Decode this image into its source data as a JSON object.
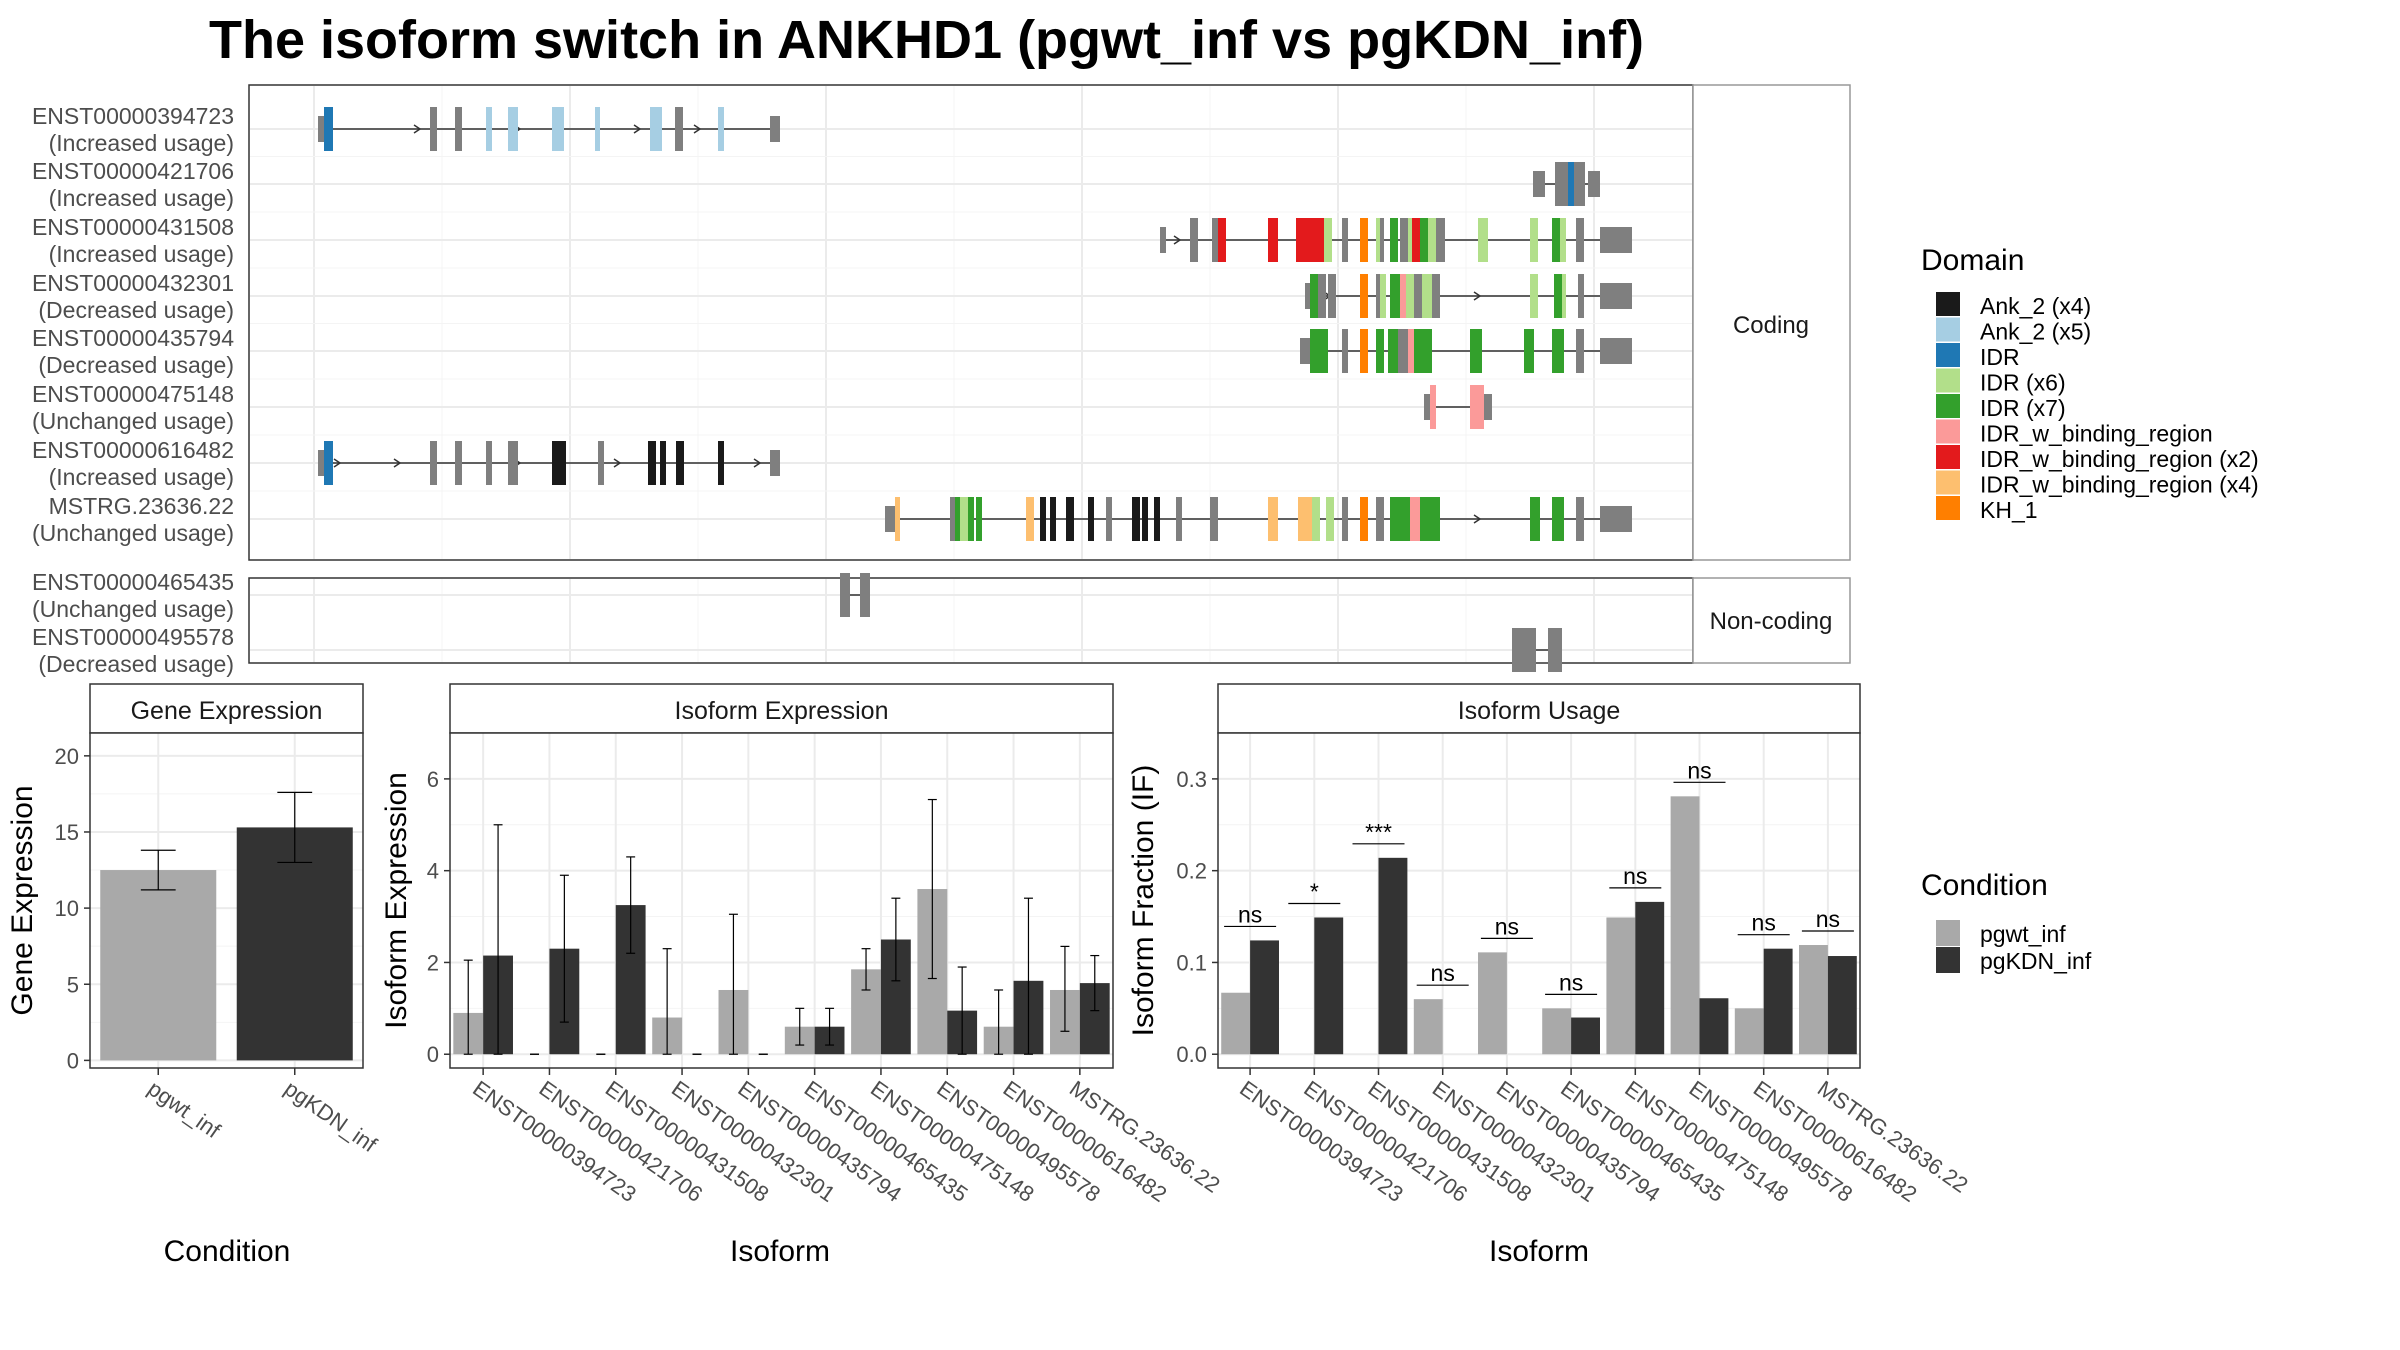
{
  "title": "The isoform switch in ANKHD1 (pgwt_inf vs pgKDN_inf)",
  "transcripts": {
    "coding_label": "Coding",
    "noncoding_label": "Non-coding",
    "coding": [
      {
        "id": "ENST00000394723",
        "usage": "(Increased usage)"
      },
      {
        "id": "ENST00000421706",
        "usage": "(Increased usage)"
      },
      {
        "id": "ENST00000431508",
        "usage": "(Increased usage)"
      },
      {
        "id": "ENST00000432301",
        "usage": "(Decreased usage)"
      },
      {
        "id": "ENST00000435794",
        "usage": "(Decreased usage)"
      },
      {
        "id": "ENST00000475148",
        "usage": "(Unchanged usage)"
      },
      {
        "id": "ENST00000616482",
        "usage": "(Increased usage)"
      },
      {
        "id": "MSTRG.23636.22",
        "usage": "(Unchanged usage)"
      }
    ],
    "noncoding": [
      {
        "id": "ENST00000465435",
        "usage": "(Unchanged usage)"
      },
      {
        "id": "ENST00000495578",
        "usage": "(Decreased usage)"
      }
    ]
  },
  "domain_legend": {
    "title": "Domain",
    "items": [
      {
        "label": "Ank_2 (x4)",
        "color": "#1a1a1a"
      },
      {
        "label": "Ank_2 (x5)",
        "color": "#a6cee3"
      },
      {
        "label": "IDR",
        "color": "#1f78b4"
      },
      {
        "label": "IDR (x6)",
        "color": "#b2df8a"
      },
      {
        "label": "IDR (x7)",
        "color": "#33a02c"
      },
      {
        "label": "IDR_w_binding_region",
        "color": "#fb9a99"
      },
      {
        "label": "IDR_w_binding_region (x2)",
        "color": "#e31a1c"
      },
      {
        "label": "IDR_w_binding_region (x4)",
        "color": "#fdbf6f"
      },
      {
        "label": "KH_1",
        "color": "#ff7f00"
      }
    ]
  },
  "condition_legend": {
    "title": "Condition",
    "items": [
      {
        "label": "pgwt_inf",
        "color": "#a9a9a9"
      },
      {
        "label": "pgKDN_inf",
        "color": "#333333"
      }
    ]
  },
  "chart_data": [
    {
      "type": "bar",
      "title": "Gene Expression",
      "xlabel": "Condition",
      "ylabel": "Gene Expression",
      "categories": [
        "pgwt_inf",
        "pgKDN_inf"
      ],
      "values": [
        12.5,
        15.3
      ],
      "error_low": [
        11.2,
        13.0
      ],
      "error_high": [
        13.8,
        17.6
      ],
      "ylim": [
        -0.5,
        21.5
      ],
      "yticks": [
        0,
        5,
        10,
        15,
        20
      ],
      "colors": [
        "#a9a9a9",
        "#333333"
      ]
    },
    {
      "type": "bar",
      "title": "Isoform Expression",
      "xlabel": "Isoform",
      "ylabel": "Isoform Expression",
      "categories": [
        "ENST00000394723",
        "ENST00000421706",
        "ENST00000431508",
        "ENST00000432301",
        "ENST00000435794",
        "ENST00000465435",
        "ENST00000475148",
        "ENST00000495578",
        "ENST00000616482",
        "MSTRG.23636.22"
      ],
      "series": [
        {
          "name": "pgwt_inf",
          "values": [
            0.9,
            0.0,
            0.0,
            0.8,
            1.4,
            0.6,
            1.85,
            3.6,
            0.6,
            1.4
          ],
          "err_low": [
            0.0,
            0.0,
            0.0,
            0.0,
            0.0,
            0.2,
            1.4,
            1.65,
            0.0,
            0.5
          ],
          "err_high": [
            2.05,
            0.0,
            0.0,
            2.3,
            3.05,
            1.0,
            2.3,
            5.55,
            1.4,
            2.35
          ]
        },
        {
          "name": "pgKDN_inf",
          "values": [
            2.15,
            2.3,
            3.25,
            0.0,
            0.0,
            0.6,
            2.5,
            0.95,
            1.6,
            1.55
          ],
          "err_low": [
            0.0,
            0.7,
            2.2,
            0.0,
            0.0,
            0.2,
            1.6,
            0.0,
            0.0,
            0.95
          ],
          "err_high": [
            5.0,
            3.9,
            4.3,
            0.0,
            0.0,
            1.0,
            3.4,
            1.9,
            3.4,
            2.15
          ]
        }
      ],
      "ylim": [
        -0.3,
        7.0
      ],
      "yticks": [
        0,
        2,
        4,
        6
      ]
    },
    {
      "type": "bar",
      "title": "Isoform Usage",
      "xlabel": "Isoform",
      "ylabel": "Isoform Fraction (IF)",
      "categories": [
        "ENST00000394723",
        "ENST00000421706",
        "ENST00000431508",
        "ENST00000432301",
        "ENST00000435794",
        "ENST00000465435",
        "ENST00000475148",
        "ENST00000495578",
        "ENST00000616482",
        "MSTRG.23636.22"
      ],
      "series": [
        {
          "name": "pgwt_inf",
          "values": [
            0.067,
            0.0,
            0.0,
            0.06,
            0.111,
            0.05,
            0.149,
            0.281,
            0.05,
            0.119
          ]
        },
        {
          "name": "pgKDN_inf",
          "values": [
            0.124,
            0.149,
            0.214,
            0.0,
            0.0,
            0.04,
            0.166,
            0.061,
            0.115,
            0.107
          ]
        }
      ],
      "significance": [
        "ns",
        "*",
        "***",
        "ns",
        "ns",
        "ns",
        "ns",
        "ns",
        "ns",
        "ns"
      ],
      "ylim": [
        -0.015,
        0.35
      ],
      "yticks": [
        0.0,
        0.1,
        0.2,
        0.3
      ],
      "ytick_labels": [
        "0.0",
        "0.1",
        "0.2",
        "0.3"
      ]
    }
  ]
}
